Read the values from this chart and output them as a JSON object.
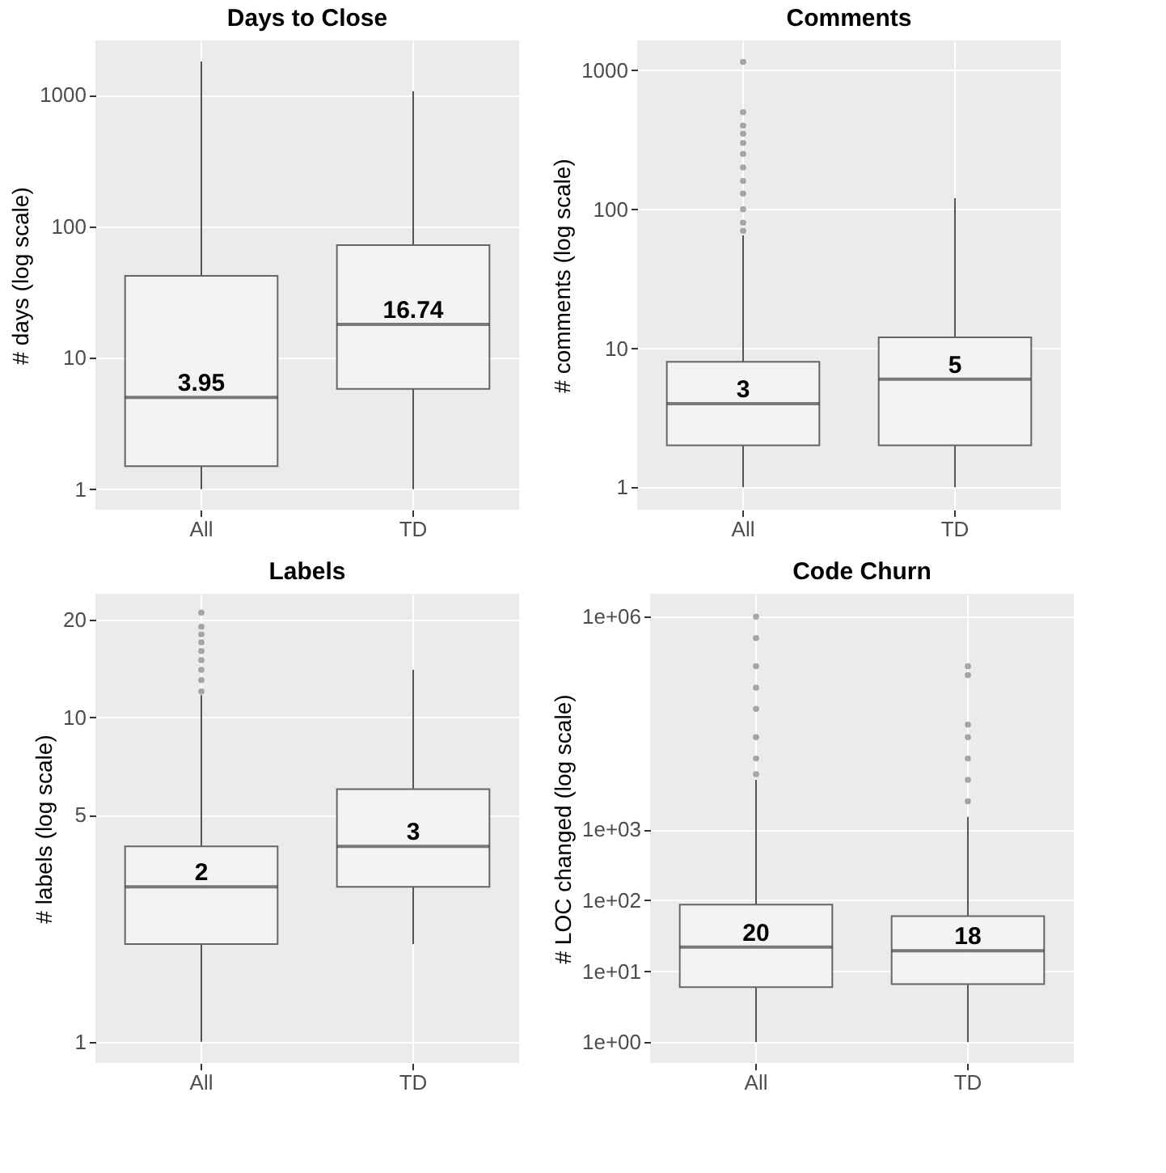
{
  "chart_data": [
    {
      "type": "box",
      "title": "Days to Close",
      "ylabel": "# days (log scale)",
      "categories": [
        "All",
        "TD"
      ],
      "log": true,
      "grid": true,
      "ylim": [
        0.7,
        2600
      ],
      "yticks": [
        1,
        10,
        100,
        1000
      ],
      "boxes": [
        {
          "low": 1,
          "q1": 1.5,
          "median": 5,
          "q3": 42,
          "high": 1800
        },
        {
          "low": 1,
          "q1": 5.8,
          "median": 18,
          "q3": 72,
          "high": 1070
        }
      ],
      "annotations": [
        {
          "text": "3.95",
          "x": "All",
          "y": 5
        },
        {
          "text": "16.74",
          "x": "TD",
          "y": 18
        }
      ]
    },
    {
      "type": "box",
      "title": "Comments",
      "ylabel": "# comments (log scale)",
      "categories": [
        "All",
        "TD"
      ],
      "log": true,
      "grid": true,
      "ylim": [
        0.69,
        1640
      ],
      "yticks": [
        1,
        10,
        100,
        1000
      ],
      "boxes": [
        {
          "low": 1,
          "q1": 2,
          "median": 4,
          "q3": 8,
          "high": 65,
          "outliers": [
            70,
            80,
            100,
            130,
            160,
            200,
            250,
            300,
            350,
            400,
            500,
            1150
          ]
        },
        {
          "low": 1,
          "q1": 2,
          "median": 6,
          "q3": 12,
          "high": 120
        }
      ],
      "annotations": [
        {
          "text": "3",
          "x": "All",
          "y": 4
        },
        {
          "text": "5",
          "x": "TD",
          "y": 6
        }
      ]
    },
    {
      "type": "box",
      "title": "Labels",
      "ylabel": "# labels (log scale)",
      "categories": [
        "All",
        "TD"
      ],
      "log": true,
      "grid": true,
      "ylim": [
        0.86,
        24
      ],
      "yticks": [
        1,
        5,
        10,
        20
      ],
      "boxes": [
        {
          "low": 1,
          "q1": 2,
          "median": 3,
          "q3": 4,
          "high": 11.7,
          "outliers": [
            12,
            13,
            14,
            15,
            16,
            17,
            18,
            19,
            21
          ]
        },
        {
          "low": 2,
          "q1": 3,
          "median": 4,
          "q3": 6,
          "high": 14
        }
      ],
      "annotations": [
        {
          "text": "2",
          "x": "All",
          "y": 3
        },
        {
          "text": "3",
          "x": "TD",
          "y": 4
        }
      ]
    },
    {
      "type": "box",
      "title": "Code Churn",
      "ylabel": "# LOC changed (log scale)",
      "categories": [
        "All",
        "TD"
      ],
      "log": true,
      "grid": true,
      "ylim": [
        0.51,
        2100000
      ],
      "yticks": [
        {
          "value": 1,
          "label": "1e+00"
        },
        {
          "value": 10,
          "label": "1e+01"
        },
        {
          "value": 100,
          "label": "1e+02"
        },
        {
          "value": 1000,
          "label": "1e+03"
        },
        {
          "value": 1000000,
          "label": "1e+06"
        }
      ],
      "boxes": [
        {
          "low": 1,
          "q1": 6,
          "median": 22,
          "q3": 87,
          "high": 5000,
          "outliers": [
            6000,
            10000,
            20000,
            50000,
            100000,
            200000,
            500000,
            1000000
          ]
        },
        {
          "low": 1,
          "q1": 6.6,
          "median": 19.5,
          "q3": 60,
          "high": 1500,
          "outliers": [
            2500,
            5000,
            10000,
            20000,
            30000,
            150000,
            200000
          ]
        }
      ],
      "annotations": [
        {
          "text": "20",
          "x": "All",
          "y": 22
        },
        {
          "text": "18",
          "x": "TD",
          "y": 19.5
        }
      ]
    }
  ]
}
